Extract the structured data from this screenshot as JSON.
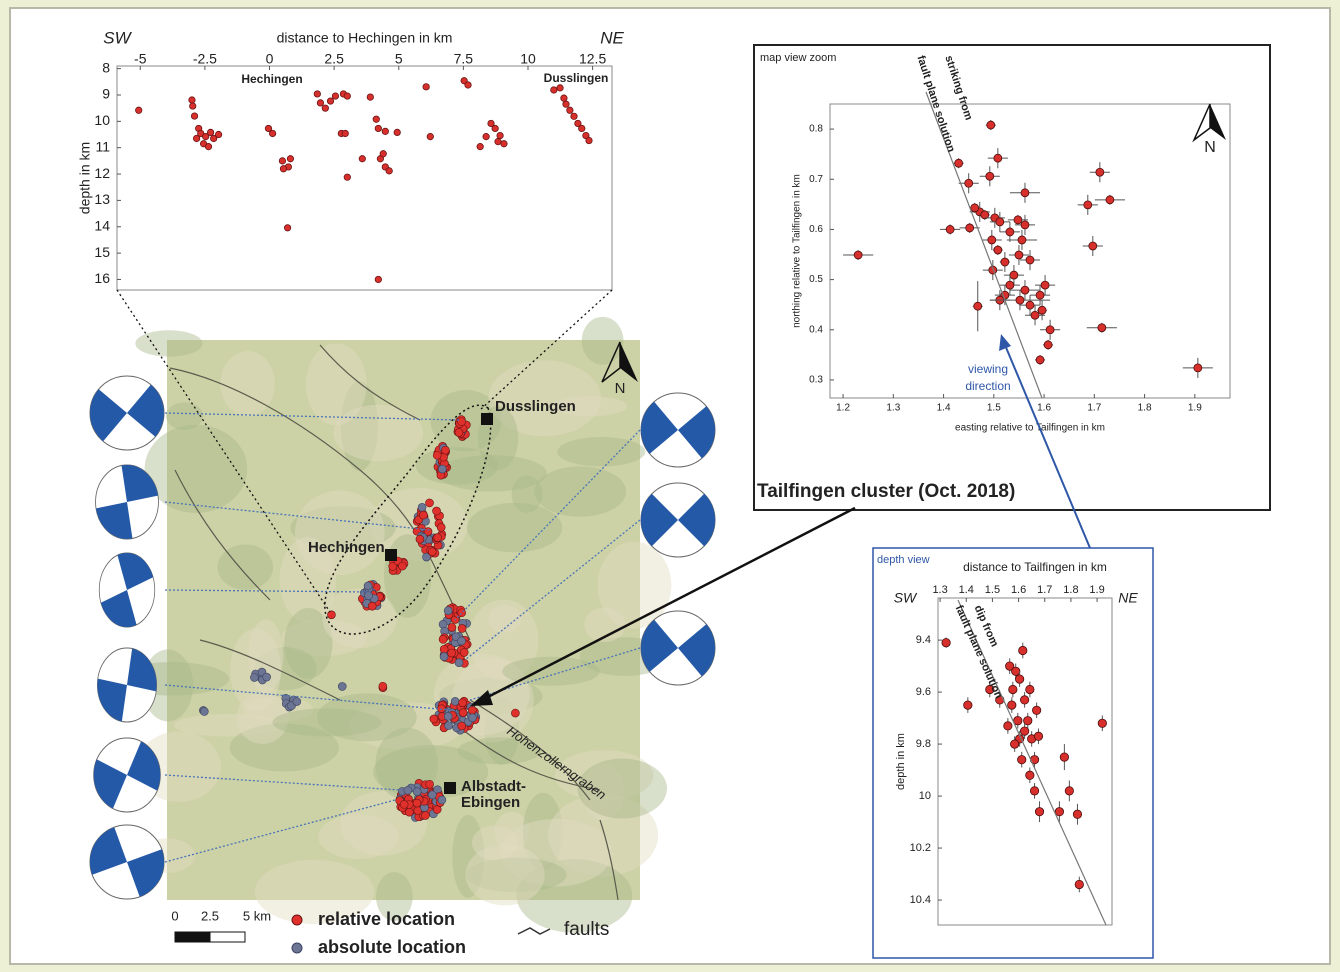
{
  "chart_data": [
    {
      "type": "scatter",
      "x_label": "distance to Hechingen in km",
      "y_label": "depth in km",
      "left_label": "SW",
      "right_label": "NE",
      "place_labels": [
        "Hechingen",
        "Dusslingen"
      ],
      "x_axis": "top",
      "color": "#d7302c",
      "edge_color": "#6a1414",
      "xlim": [
        -5.9,
        13.25
      ],
      "ylim": [
        16.4,
        7.9
      ],
      "xticks": [
        -5,
        -2.5,
        0,
        2.5,
        5,
        7.5,
        10,
        12.5
      ],
      "yticks": [
        8,
        9,
        10,
        11,
        12,
        13,
        14,
        15,
        16
      ],
      "x": [
        -5.06,
        -3.0,
        -2.97,
        -2.9,
        -2.74,
        -2.66,
        -2.47,
        -2.28,
        -2.16,
        -2.55,
        -2.36,
        -1.97,
        -2.82,
        -0.04,
        0.12,
        0.5,
        0.73,
        0.54,
        0.81,
        0.7,
        1.85,
        1.97,
        2.16,
        2.36,
        2.55,
        2.86,
        3.01,
        2.78,
        2.93,
        3.01,
        3.59,
        3.9,
        4.13,
        4.21,
        4.29,
        4.4,
        4.48,
        4.63,
        4.48,
        4.94,
        4.21,
        6.06,
        6.22,
        7.53,
        7.68,
        8.15,
        8.38,
        8.57,
        8.73,
        8.92,
        9.07,
        8.84,
        11.0,
        11.24,
        11.39,
        11.47,
        11.62,
        11.78,
        11.93,
        12.08,
        12.24,
        12.36
      ],
      "y": [
        9.58,
        9.19,
        9.42,
        9.8,
        10.27,
        10.46,
        10.58,
        10.42,
        10.65,
        10.85,
        10.96,
        10.5,
        10.65,
        10.27,
        10.46,
        11.5,
        11.73,
        11.8,
        11.42,
        14.04,
        8.96,
        9.3,
        9.5,
        9.23,
        9.04,
        8.96,
        9.04,
        10.46,
        10.46,
        12.12,
        11.42,
        9.08,
        9.92,
        10.27,
        11.42,
        11.23,
        11.73,
        11.88,
        10.38,
        10.42,
        16.0,
        8.69,
        10.58,
        8.46,
        8.62,
        10.96,
        10.58,
        10.08,
        10.27,
        10.54,
        10.85,
        10.77,
        8.81,
        8.73,
        9.12,
        9.35,
        9.58,
        9.81,
        10.08,
        10.27,
        10.54,
        10.73
      ]
    },
    {
      "type": "scatter",
      "title": "map view zoom",
      "caption": "Tailfingen cluster (Oct. 2018)",
      "x_label": "easting relative to Tailfingen in km",
      "y_label": "northing relative to Tailfingen in km",
      "strike_annotation": [
        "striking from",
        "fault plane solution"
      ],
      "view_annotation": [
        "viewing",
        "direction"
      ],
      "north": "N",
      "x_axis": "bottom",
      "color": "#d7302c",
      "edge_color": "#4a0d0d",
      "xlim": [
        1.174,
        1.97
      ],
      "ylim": [
        0.264,
        0.85
      ],
      "xticks": [
        1.2,
        1.3,
        1.4,
        1.5,
        1.6,
        1.7,
        1.8,
        1.9
      ],
      "yticks": [
        0.3,
        0.4,
        0.5,
        0.6,
        0.7,
        0.8
      ],
      "x": [
        1.23,
        1.413,
        1.43,
        1.45,
        1.494,
        1.508,
        1.492,
        1.472,
        1.462,
        1.482,
        1.452,
        1.468,
        1.502,
        1.512,
        1.496,
        1.508,
        1.498,
        1.522,
        1.532,
        1.548,
        1.556,
        1.562,
        1.55,
        1.54,
        1.532,
        1.522,
        1.512,
        1.552,
        1.562,
        1.572,
        1.582,
        1.592,
        1.602,
        1.596,
        1.612,
        1.608,
        1.592,
        1.562,
        1.572,
        1.687,
        1.711,
        1.731,
        1.697,
        1.715,
        1.906
      ],
      "y": [
        0.549,
        0.6,
        0.732,
        0.692,
        0.808,
        0.742,
        0.706,
        0.635,
        0.643,
        0.629,
        0.603,
        0.447,
        0.623,
        0.615,
        0.579,
        0.559,
        0.519,
        0.535,
        0.595,
        0.619,
        0.579,
        0.673,
        0.549,
        0.509,
        0.489,
        0.469,
        0.459,
        0.459,
        0.479,
        0.449,
        0.429,
        0.469,
        0.489,
        0.439,
        0.4,
        0.37,
        0.34,
        0.609,
        0.539,
        0.649,
        0.714,
        0.659,
        0.567,
        0.404,
        0.324
      ],
      "x_err": [
        0.03,
        0.02,
        0.01,
        0.02,
        0.01,
        0.02,
        0.02,
        0.02,
        0.01,
        0.01,
        0.02,
        0.01,
        0.02,
        0.02,
        0.02,
        0.01,
        0.02,
        0.01,
        0.02,
        0.02,
        0.03,
        0.03,
        0.02,
        0.02,
        0.02,
        0.02,
        0.02,
        0.06,
        0.03,
        0.02,
        0.02,
        0.02,
        0.02,
        0.01,
        0.02,
        0.01,
        0.01,
        0.02,
        0.02,
        0.02,
        0.02,
        0.03,
        0.02,
        0.03,
        0.03
      ],
      "y_err": [
        0.01,
        0.01,
        0.01,
        0.02,
        0.01,
        0.02,
        0.02,
        0.02,
        0.01,
        0.01,
        0.01,
        0.05,
        0.02,
        0.02,
        0.02,
        0.01,
        0.02,
        0.02,
        0.02,
        0.01,
        0.02,
        0.02,
        0.02,
        0.02,
        0.02,
        0.02,
        0.02,
        0.02,
        0.02,
        0.02,
        0.02,
        0.02,
        0.02,
        0.02,
        0.02,
        0.01,
        0.01,
        0.02,
        0.02,
        0.02,
        0.02,
        0.01,
        0.02,
        0.01,
        0.02
      ]
    },
    {
      "type": "scatter",
      "title": "depth view",
      "x_label": "distance to Tailfingen in km",
      "y_label": "depth in km",
      "left_label": "SW",
      "right_label": "NE",
      "dip_annotation": [
        "dip from",
        "fault plane solution"
      ],
      "x_axis": "top",
      "color": "#d7302c",
      "edge_color": "#4a0d0d",
      "xlim": [
        1.292,
        1.957
      ],
      "ylim": [
        10.496,
        9.238
      ],
      "xticks": [
        1.3,
        1.4,
        1.5,
        1.6,
        1.7,
        1.8,
        1.9
      ],
      "yticks": [
        9.4,
        9.6,
        9.8,
        10,
        10.2,
        10.4
      ],
      "x": [
        1.323,
        1.406,
        1.49,
        1.528,
        1.566,
        1.578,
        1.589,
        1.604,
        1.616,
        1.623,
        1.635,
        1.643,
        1.65,
        1.604,
        1.585,
        1.612,
        1.661,
        1.643,
        1.661,
        1.68,
        1.756,
        1.794,
        1.775,
        1.825,
        1.832,
        1.92,
        1.574,
        1.597,
        1.623,
        1.559,
        1.669,
        1.676
      ],
      "y": [
        9.41,
        9.65,
        9.59,
        9.63,
        9.5,
        9.59,
        9.52,
        9.55,
        9.44,
        9.63,
        9.71,
        9.59,
        9.78,
        9.78,
        9.8,
        9.86,
        9.86,
        9.92,
        9.98,
        10.06,
        10.06,
        9.98,
        9.85,
        10.07,
        10.34,
        9.72,
        9.65,
        9.71,
        9.75,
        9.73,
        9.67,
        9.77
      ],
      "y_err": [
        0.02,
        0.03,
        0.03,
        0.03,
        0.03,
        0.03,
        0.03,
        0.03,
        0.03,
        0.03,
        0.03,
        0.03,
        0.03,
        0.03,
        0.03,
        0.03,
        0.03,
        0.03,
        0.03,
        0.04,
        0.04,
        0.04,
        0.05,
        0.04,
        0.03,
        0.03,
        0.03,
        0.03,
        0.03,
        0.03,
        0.03,
        0.03
      ]
    }
  ],
  "map": {
    "place_labels": [
      "Dusslingen",
      "Hechingen",
      "Albstadt-",
      "Ebingen",
      "Hohenzollerngraben"
    ],
    "north": "N",
    "scale_ticks": [
      0,
      2.5,
      {
        "value": 5,
        "label": "5 km"
      }
    ],
    "legend": [
      "relative location",
      "absolute location",
      "faults"
    ]
  }
}
